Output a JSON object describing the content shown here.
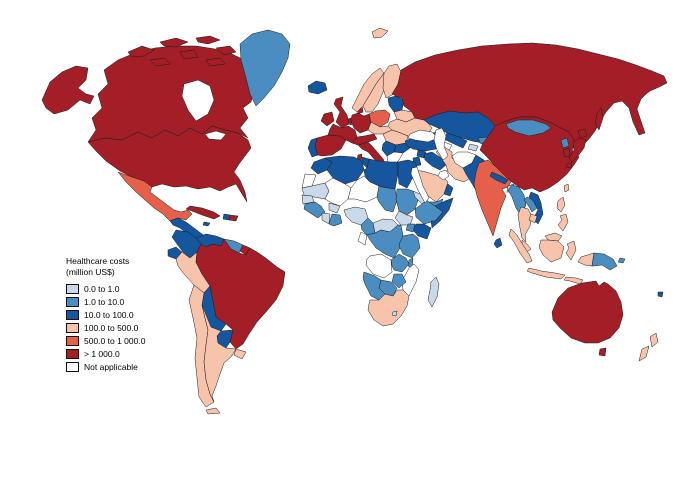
{
  "legend": {
    "title_line1": "Healthcare costs",
    "title_line2": "(million US$)",
    "items": [
      {
        "label": "0.0 to 1.0",
        "color": "#c9d9e9"
      },
      {
        "label": "1.0 to 10.0",
        "color": "#4b8dc0"
      },
      {
        "label": "10.0 to 100.0",
        "color": "#16569f"
      },
      {
        "label": "100.0 to 500.0",
        "color": "#f8c3ab"
      },
      {
        "label": "500.0 to 1 000.0",
        "color": "#e5604a"
      },
      {
        "label": "> 1 000.0",
        "color": "#a31e27"
      },
      {
        "label": "Not applicable",
        "color": "#ffffff"
      }
    ]
  },
  "map": {
    "ocean_color": "#ffffff",
    "border_color": "#1b1b1b"
  },
  "chart_data": {
    "type": "choropleth",
    "title": "Healthcare costs (million US$)",
    "legend_position": "middle-left",
    "bins": [
      {
        "label": "0.0 to 1.0",
        "color": "#c9d9e9"
      },
      {
        "label": "1.0 to 10.0",
        "color": "#4b8dc0"
      },
      {
        "label": "10.0 to 100.0",
        "color": "#16569f"
      },
      {
        "label": "100.0 to 500.0",
        "color": "#f8c3ab"
      },
      {
        "label": "500.0 to 1 000.0",
        "color": "#e5604a"
      },
      {
        "label": "> 1 000.0",
        "color": "#a31e27"
      },
      {
        "label": "Not applicable",
        "color": "#ffffff"
      }
    ],
    "countries": [
      {
        "name": "Canada",
        "bin": "> 1 000.0"
      },
      {
        "name": "United States",
        "bin": "> 1 000.0"
      },
      {
        "name": "Greenland",
        "bin": "1.0 to 10.0"
      },
      {
        "name": "Mexico",
        "bin": "500.0 to 1 000.0"
      },
      {
        "name": "Central America",
        "bin": "10.0 to 100.0"
      },
      {
        "name": "Cuba",
        "bin": "> 1 000.0"
      },
      {
        "name": "Haiti",
        "bin": "10.0 to 100.0"
      },
      {
        "name": "Dominican Republic",
        "bin": "> 1 000.0"
      },
      {
        "name": "Jamaica",
        "bin": "10.0 to 100.0"
      },
      {
        "name": "Colombia",
        "bin": "10.0 to 100.0"
      },
      {
        "name": "Venezuela",
        "bin": "10.0 to 100.0"
      },
      {
        "name": "Guyana / Suriname",
        "bin": "1.0 to 10.0"
      },
      {
        "name": "French Guiana",
        "bin": "> 1 000.0"
      },
      {
        "name": "Ecuador",
        "bin": "10.0 to 100.0"
      },
      {
        "name": "Peru",
        "bin": "100.0 to 500.0"
      },
      {
        "name": "Brazil",
        "bin": "> 1 000.0"
      },
      {
        "name": "Bolivia",
        "bin": "10.0 to 100.0"
      },
      {
        "name": "Paraguay",
        "bin": "10.0 to 100.0"
      },
      {
        "name": "Chile",
        "bin": "100.0 to 500.0"
      },
      {
        "name": "Argentina",
        "bin": "100.0 to 500.0"
      },
      {
        "name": "Uruguay",
        "bin": "100.0 to 500.0"
      },
      {
        "name": "Iceland",
        "bin": "10.0 to 100.0"
      },
      {
        "name": "Ireland",
        "bin": "> 1 000.0"
      },
      {
        "name": "United Kingdom",
        "bin": "> 1 000.0"
      },
      {
        "name": "Portugal",
        "bin": "10.0 to 100.0"
      },
      {
        "name": "Spain",
        "bin": "> 1 000.0"
      },
      {
        "name": "France",
        "bin": "> 1 000.0"
      },
      {
        "name": "Belgium / Netherlands",
        "bin": "> 1 000.0"
      },
      {
        "name": "Germany",
        "bin": "> 1 000.0"
      },
      {
        "name": "Denmark",
        "bin": "> 1 000.0"
      },
      {
        "name": "Norway",
        "bin": "100.0 to 500.0"
      },
      {
        "name": "Sweden",
        "bin": "100.0 to 500.0"
      },
      {
        "name": "Finland",
        "bin": "100.0 to 500.0"
      },
      {
        "name": "Estonia / Latvia / Lithuania",
        "bin": "10.0 to 100.0"
      },
      {
        "name": "Belarus",
        "bin": "100.0 to 500.0"
      },
      {
        "name": "Poland",
        "bin": "500.0 to 1 000.0"
      },
      {
        "name": "Czechia / Slovakia",
        "bin": "100.0 to 500.0"
      },
      {
        "name": "Ukraine",
        "bin": "100.0 to 500.0"
      },
      {
        "name": "Hungary / Romania",
        "bin": "100.0 to 500.0"
      },
      {
        "name": "Austria / Switzerland",
        "bin": "> 1 000.0"
      },
      {
        "name": "Italy",
        "bin": "> 1 000.0"
      },
      {
        "name": "Serbia / Western Balkans",
        "bin": "10.0 to 100.0"
      },
      {
        "name": "Bulgaria",
        "bin": "10.0 to 100.0"
      },
      {
        "name": "Greece",
        "bin": "Not applicable"
      },
      {
        "name": "Russia",
        "bin": "> 1 000.0"
      },
      {
        "name": "Kazakhstan",
        "bin": "10.0 to 100.0"
      },
      {
        "name": "Uzbekistan",
        "bin": "10.0 to 100.0"
      },
      {
        "name": "Turkmenistan",
        "bin": "Not applicable"
      },
      {
        "name": "Kyrgyzstan",
        "bin": "1.0 to 10.0"
      },
      {
        "name": "Tajikistan",
        "bin": "0.0 to 1.0"
      },
      {
        "name": "Caucasus states",
        "bin": "10.0 to 100.0"
      },
      {
        "name": "Turkey",
        "bin": "10.0 to 100.0"
      },
      {
        "name": "Syria",
        "bin": "10.0 to 100.0"
      },
      {
        "name": "Iraq",
        "bin": "10.0 to 100.0"
      },
      {
        "name": "Jordan / Israel",
        "bin": "10.0 to 100.0"
      },
      {
        "name": "Iran",
        "bin": "100.0 to 500.0"
      },
      {
        "name": "Saudi Arabia",
        "bin": "100.0 to 500.0"
      },
      {
        "name": "Yemen",
        "bin": "1.0 to 10.0"
      },
      {
        "name": "Oman",
        "bin": "10.0 to 100.0"
      },
      {
        "name": "Afghanistan",
        "bin": "Not applicable"
      },
      {
        "name": "Pakistan",
        "bin": "10.0 to 100.0"
      },
      {
        "name": "India",
        "bin": "500.0 to 1 000.0"
      },
      {
        "name": "Nepal",
        "bin": "10.0 to 100.0"
      },
      {
        "name": "Bangladesh",
        "bin": "0.0 to 1.0"
      },
      {
        "name": "Sri Lanka",
        "bin": "10.0 to 100.0"
      },
      {
        "name": "China",
        "bin": "> 1 000.0"
      },
      {
        "name": "Mongolia",
        "bin": "1.0 to 10.0"
      },
      {
        "name": "North Korea",
        "bin": "1.0 to 10.0"
      },
      {
        "name": "South Korea",
        "bin": "> 1 000.0"
      },
      {
        "name": "Japan",
        "bin": "> 1 000.0"
      },
      {
        "name": "Taiwan",
        "bin": "100.0 to 500.0"
      },
      {
        "name": "Myanmar",
        "bin": "1.0 to 10.0"
      },
      {
        "name": "Thailand",
        "bin": "100.0 to 500.0"
      },
      {
        "name": "Laos",
        "bin": "1.0 to 10.0"
      },
      {
        "name": "Vietnam",
        "bin": "10.0 to 100.0"
      },
      {
        "name": "Cambodia",
        "bin": "100.0 to 500.0"
      },
      {
        "name": "Malaysia",
        "bin": "100.0 to 500.0"
      },
      {
        "name": "Indonesia",
        "bin": "100.0 to 500.0"
      },
      {
        "name": "Papua New Guinea",
        "bin": "1.0 to 10.0"
      },
      {
        "name": "Philippines",
        "bin": "100.0 to 500.0"
      },
      {
        "name": "Fiji",
        "bin": "10.0 to 100.0"
      },
      {
        "name": "Australia",
        "bin": "> 1 000.0"
      },
      {
        "name": "New Zealand",
        "bin": "100.0 to 500.0"
      },
      {
        "name": "Morocco",
        "bin": "10.0 to 100.0"
      },
      {
        "name": "Algeria",
        "bin": "10.0 to 100.0"
      },
      {
        "name": "Tunisia",
        "bin": "10.0 to 100.0"
      },
      {
        "name": "Libya",
        "bin": "10.0 to 100.0"
      },
      {
        "name": "Egypt",
        "bin": "10.0 to 100.0"
      },
      {
        "name": "Western Sahara",
        "bin": "Not applicable"
      },
      {
        "name": "Mauritania",
        "bin": "0.0 to 1.0"
      },
      {
        "name": "Mali",
        "bin": "Not applicable"
      },
      {
        "name": "Niger",
        "bin": "Not applicable"
      },
      {
        "name": "Chad",
        "bin": "1.0 to 10.0"
      },
      {
        "name": "Sudan",
        "bin": "1.0 to 10.0"
      },
      {
        "name": "Eritrea",
        "bin": "0.0 to 1.0"
      },
      {
        "name": "Senegal",
        "bin": "0.0 to 1.0"
      },
      {
        "name": "Guinea region",
        "bin": "1.0 to 10.0"
      },
      {
        "name": "Cote d'Ivoire",
        "bin": "0.0 to 1.0"
      },
      {
        "name": "Burkina Faso",
        "bin": "0.0 to 1.0"
      },
      {
        "name": "Ghana / Togo / Benin",
        "bin": "1.0 to 10.0"
      },
      {
        "name": "Nigeria",
        "bin": "0.0 to 1.0"
      },
      {
        "name": "Cameroon",
        "bin": "1.0 to 10.0"
      },
      {
        "name": "Central African Republic",
        "bin": "0.0 to 1.0"
      },
      {
        "name": "South Sudan",
        "bin": "0.0 to 1.0"
      },
      {
        "name": "Ethiopia",
        "bin": "1.0 to 10.0"
      },
      {
        "name": "Somalia",
        "bin": "10.0 to 100.0"
      },
      {
        "name": "Kenya",
        "bin": "10.0 to 100.0"
      },
      {
        "name": "Uganda",
        "bin": "1.0 to 10.0"
      },
      {
        "name": "DR Congo",
        "bin": "1.0 to 10.0"
      },
      {
        "name": "Gabon / Congo",
        "bin": "Not applicable"
      },
      {
        "name": "Tanzania",
        "bin": "1.0 to 10.0"
      },
      {
        "name": "Angola",
        "bin": "Not applicable"
      },
      {
        "name": "Zambia",
        "bin": "1.0 to 10.0"
      },
      {
        "name": "Malawi",
        "bin": "1.0 to 10.0"
      },
      {
        "name": "Mozambique",
        "bin": "Not applicable"
      },
      {
        "name": "Zimbabwe",
        "bin": "1.0 to 10.0"
      },
      {
        "name": "Botswana",
        "bin": "1.0 to 10.0"
      },
      {
        "name": "Namibia",
        "bin": "1.0 to 10.0"
      },
      {
        "name": "South Africa",
        "bin": "100.0 to 500.0"
      },
      {
        "name": "Lesotho",
        "bin": "0.0 to 1.0"
      },
      {
        "name": "Madagascar",
        "bin": "0.0 to 1.0"
      }
    ]
  }
}
